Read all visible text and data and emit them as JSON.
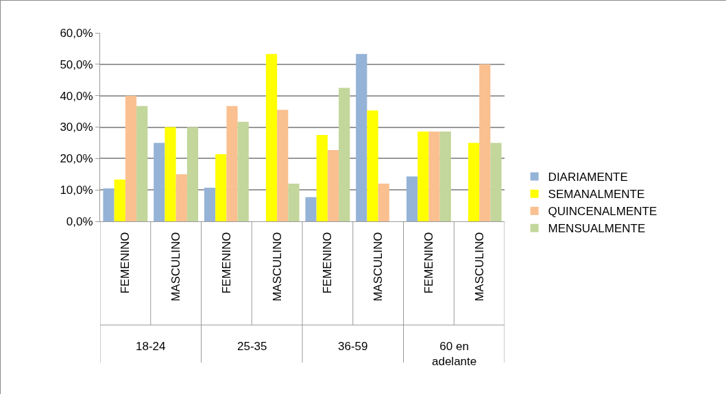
{
  "chart_data": {
    "type": "bar",
    "categories": [
      "FEMENINO",
      "MASCULINO",
      "FEMENINO",
      "MASCULINO",
      "FEMENINO",
      "MASCULINO",
      "FEMENINO",
      "MASCULINO"
    ],
    "annotations": [
      "18-24",
      "25-35",
      "36-59",
      "60 en\nadelante"
    ],
    "series": [
      {
        "name": "DIARIAMENTE",
        "color": "#95b3d7",
        "values": [
          10.5,
          25,
          10.7,
          0,
          7.7,
          53.3,
          14.3,
          0
        ]
      },
      {
        "name": "SEMANALMENTE",
        "color": "#ffff00",
        "values": [
          13.3,
          30,
          21.4,
          53.3,
          27.5,
          35.3,
          28.6,
          25
        ]
      },
      {
        "name": "QUINCENALMENTE",
        "color": "#fac090",
        "values": [
          40,
          15,
          36.7,
          35.5,
          22.7,
          12,
          28.6,
          50
        ]
      },
      {
        "name": "MENSUALMENTE",
        "color": "#c3d69b",
        "values": [
          36.7,
          30,
          31.7,
          12,
          42.5,
          0,
          28.6,
          25
        ]
      }
    ],
    "ylim": [
      0,
      60
    ],
    "yticks": [
      {
        "value": 0,
        "label": "0,0%"
      },
      {
        "value": 10,
        "label": "10,0%"
      },
      {
        "value": 20,
        "label": "20,0%"
      },
      {
        "value": 30,
        "label": "30,0%"
      },
      {
        "value": 40,
        "label": "40,0%"
      },
      {
        "value": 50,
        "label": "50,0%"
      },
      {
        "value": 60,
        "label": "60,0%"
      }
    ],
    "grid": "y",
    "legend": "right"
  }
}
